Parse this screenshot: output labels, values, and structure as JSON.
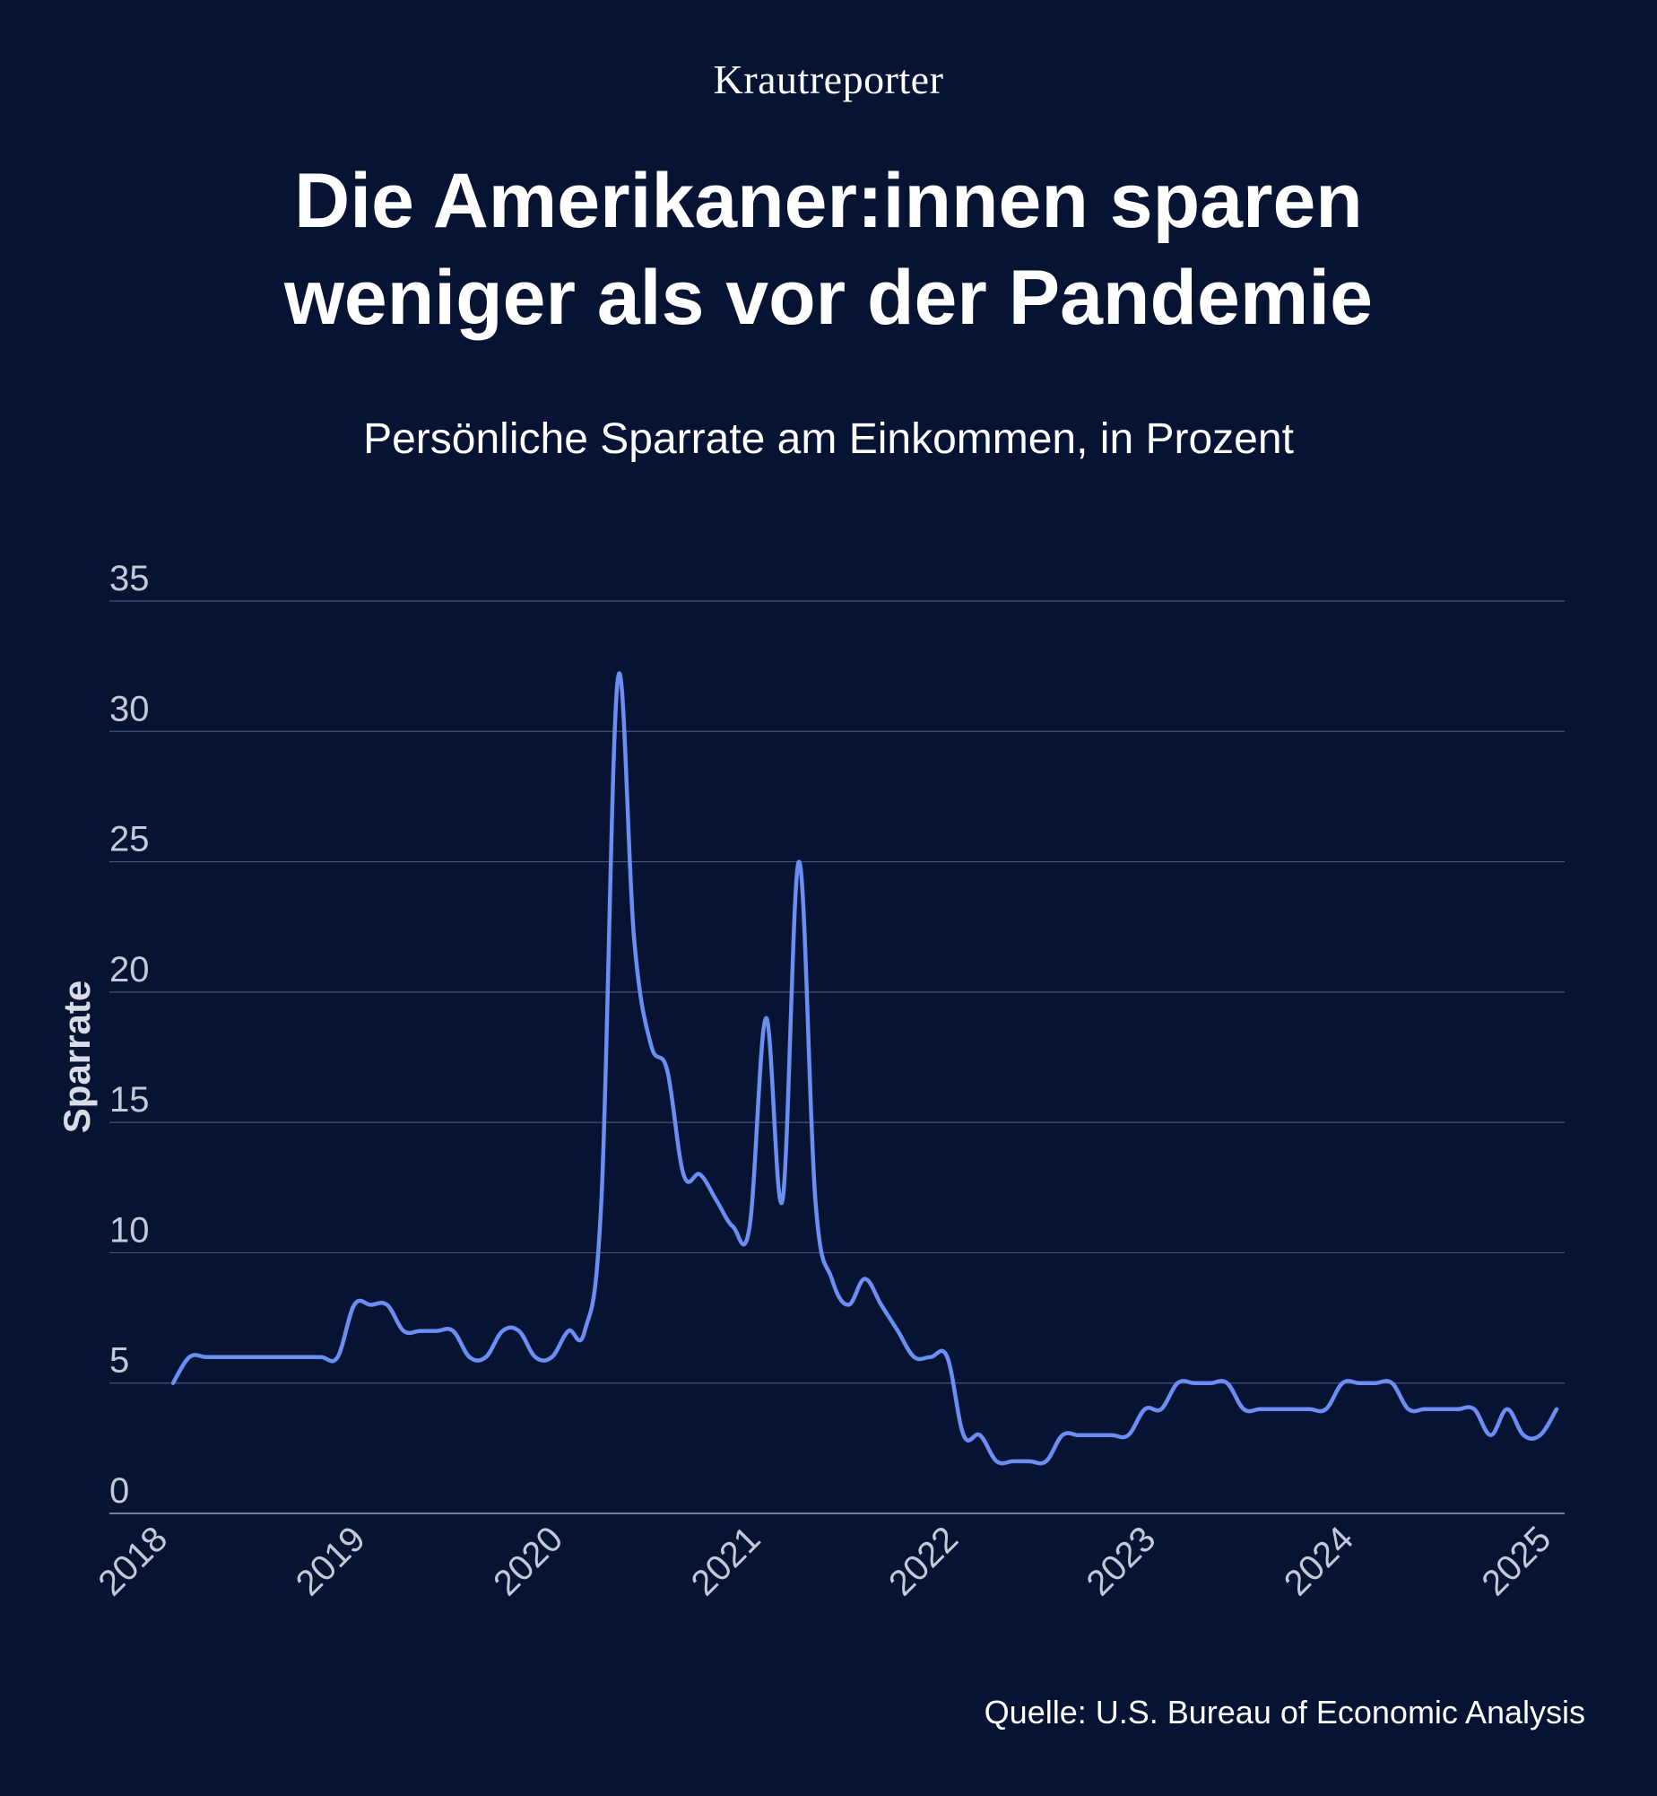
{
  "brand": "Krautreporter",
  "title_line1": "Die Amerikaner:innen sparen",
  "title_line2": "weniger als vor der Pandemie",
  "subtitle": "Persönliche Sparrate am Einkommen, in Prozent",
  "source": "Quelle: U.S. Bureau of Economic Analysis",
  "colors": {
    "background": "#061333",
    "line": "#6a8ef2",
    "grid": "#4a5570",
    "text": "#ffffff"
  },
  "chart_data": {
    "type": "line",
    "title": "Die Amerikaner:innen sparen weniger als vor der Pandemie",
    "subtitle": "Persönliche Sparrate am Einkommen, in Prozent",
    "xlabel": "",
    "ylabel": "Sparrate",
    "ylim": [
      0,
      35
    ],
    "xlim": [
      2018,
      2025
    ],
    "yticks": [
      0,
      5,
      10,
      15,
      20,
      25,
      30,
      35
    ],
    "xticks": [
      "2018",
      "2019",
      "2020",
      "2021",
      "2022",
      "2023",
      "2024",
      "2025"
    ],
    "grid": true,
    "series": [
      {
        "x": [
          2018.0,
          2018.083,
          2018.167,
          2018.25,
          2018.333,
          2018.417,
          2018.5,
          2018.583,
          2018.667,
          2018.75,
          2018.833,
          2018.917,
          2019.0,
          2019.083,
          2019.167,
          2019.25,
          2019.333,
          2019.417,
          2019.5,
          2019.583,
          2019.667,
          2019.75,
          2019.833,
          2019.917,
          2020.0,
          2020.083,
          2020.167,
          2020.25,
          2020.333,
          2020.417,
          2020.5,
          2020.583,
          2020.667,
          2020.75,
          2020.833,
          2020.917,
          2021.0,
          2021.083,
          2021.167,
          2021.25,
          2021.333,
          2021.417,
          2021.5,
          2021.583,
          2021.667,
          2021.75,
          2021.833,
          2021.917,
          2022.0,
          2022.083,
          2022.167,
          2022.25,
          2022.333,
          2022.417,
          2022.5,
          2022.583,
          2022.667,
          2022.75,
          2022.833,
          2022.917,
          2023.0,
          2023.083,
          2023.167,
          2023.25,
          2023.333,
          2023.417,
          2023.5,
          2023.583,
          2023.667,
          2023.75,
          2023.833,
          2023.917,
          2024.0,
          2024.083,
          2024.167,
          2024.25,
          2024.333,
          2024.417,
          2024.5,
          2024.583,
          2024.667,
          2024.75,
          2024.833,
          2024.917,
          2025.0
        ],
        "y": [
          5,
          6,
          6,
          6,
          6,
          6,
          6,
          6,
          6,
          6,
          6,
          8,
          8,
          8,
          7,
          7,
          7,
          7,
          6,
          6,
          7,
          7,
          6,
          6,
          7,
          7,
          12,
          32,
          22,
          18,
          17,
          13,
          13,
          12,
          11,
          11,
          19,
          12,
          25,
          12,
          9,
          8,
          9,
          8,
          7,
          6,
          6,
          6,
          3,
          3,
          2,
          2,
          2,
          2,
          3,
          3,
          3,
          3,
          3,
          4,
          4,
          5,
          5,
          5,
          5,
          4,
          4,
          4,
          4,
          4,
          4,
          5,
          5,
          5,
          5,
          4,
          4,
          4,
          4,
          4,
          3,
          4,
          3,
          3,
          4
        ]
      }
    ]
  }
}
